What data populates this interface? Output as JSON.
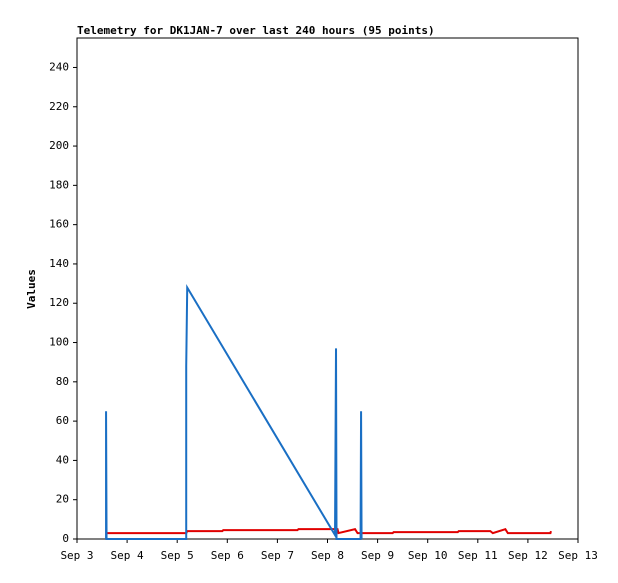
{
  "chart_data": {
    "type": "line",
    "title": "Telemetry for DK1JAN-7 over last 240 hours (95 points)",
    "y_label": "Values",
    "xlim": [
      3,
      13
    ],
    "xticks": [
      {
        "value": 3,
        "label": "Sep 3"
      },
      {
        "value": 4,
        "label": "Sep 4"
      },
      {
        "value": 5,
        "label": "Sep 5"
      },
      {
        "value": 6,
        "label": "Sep 6"
      },
      {
        "value": 7,
        "label": "Sep 7"
      },
      {
        "value": 8,
        "label": "Sep 8"
      },
      {
        "value": 9,
        "label": "Sep 9"
      },
      {
        "value": 10,
        "label": "Sep 10"
      },
      {
        "value": 11,
        "label": "Sep 11"
      },
      {
        "value": 12,
        "label": "Sep 12"
      },
      {
        "value": 13,
        "label": "Sep 13"
      }
    ],
    "ylim": [
      0,
      255
    ],
    "yticks": [
      0,
      20,
      40,
      60,
      80,
      100,
      120,
      140,
      160,
      180,
      200,
      220,
      240
    ],
    "series": [
      {
        "color": "#e00000",
        "x": [
          3.58,
          5.18,
          5.2,
          5.9,
          5.92,
          7.4,
          7.42,
          8.2,
          8.22,
          8.55,
          8.6,
          9.3,
          9.32,
          10.6,
          10.62,
          11.25,
          11.3,
          11.55,
          11.6,
          12.45,
          12.46
        ],
        "values": [
          3,
          3,
          4,
          4,
          4.5,
          4.5,
          5,
          5,
          3,
          5,
          3,
          3,
          3.5,
          3.5,
          4,
          4,
          3,
          5,
          3,
          3,
          4
        ]
      },
      {
        "color": "#1a6fc4",
        "x": [
          3.58,
          3.58,
          3.59,
          5.18,
          5.18,
          5.2,
          8.15,
          8.17,
          8.18,
          8.66,
          8.67,
          8.68
        ],
        "values": [
          0,
          65,
          0,
          0,
          88,
          128,
          2,
          97,
          0,
          0,
          65,
          0
        ]
      }
    ]
  }
}
